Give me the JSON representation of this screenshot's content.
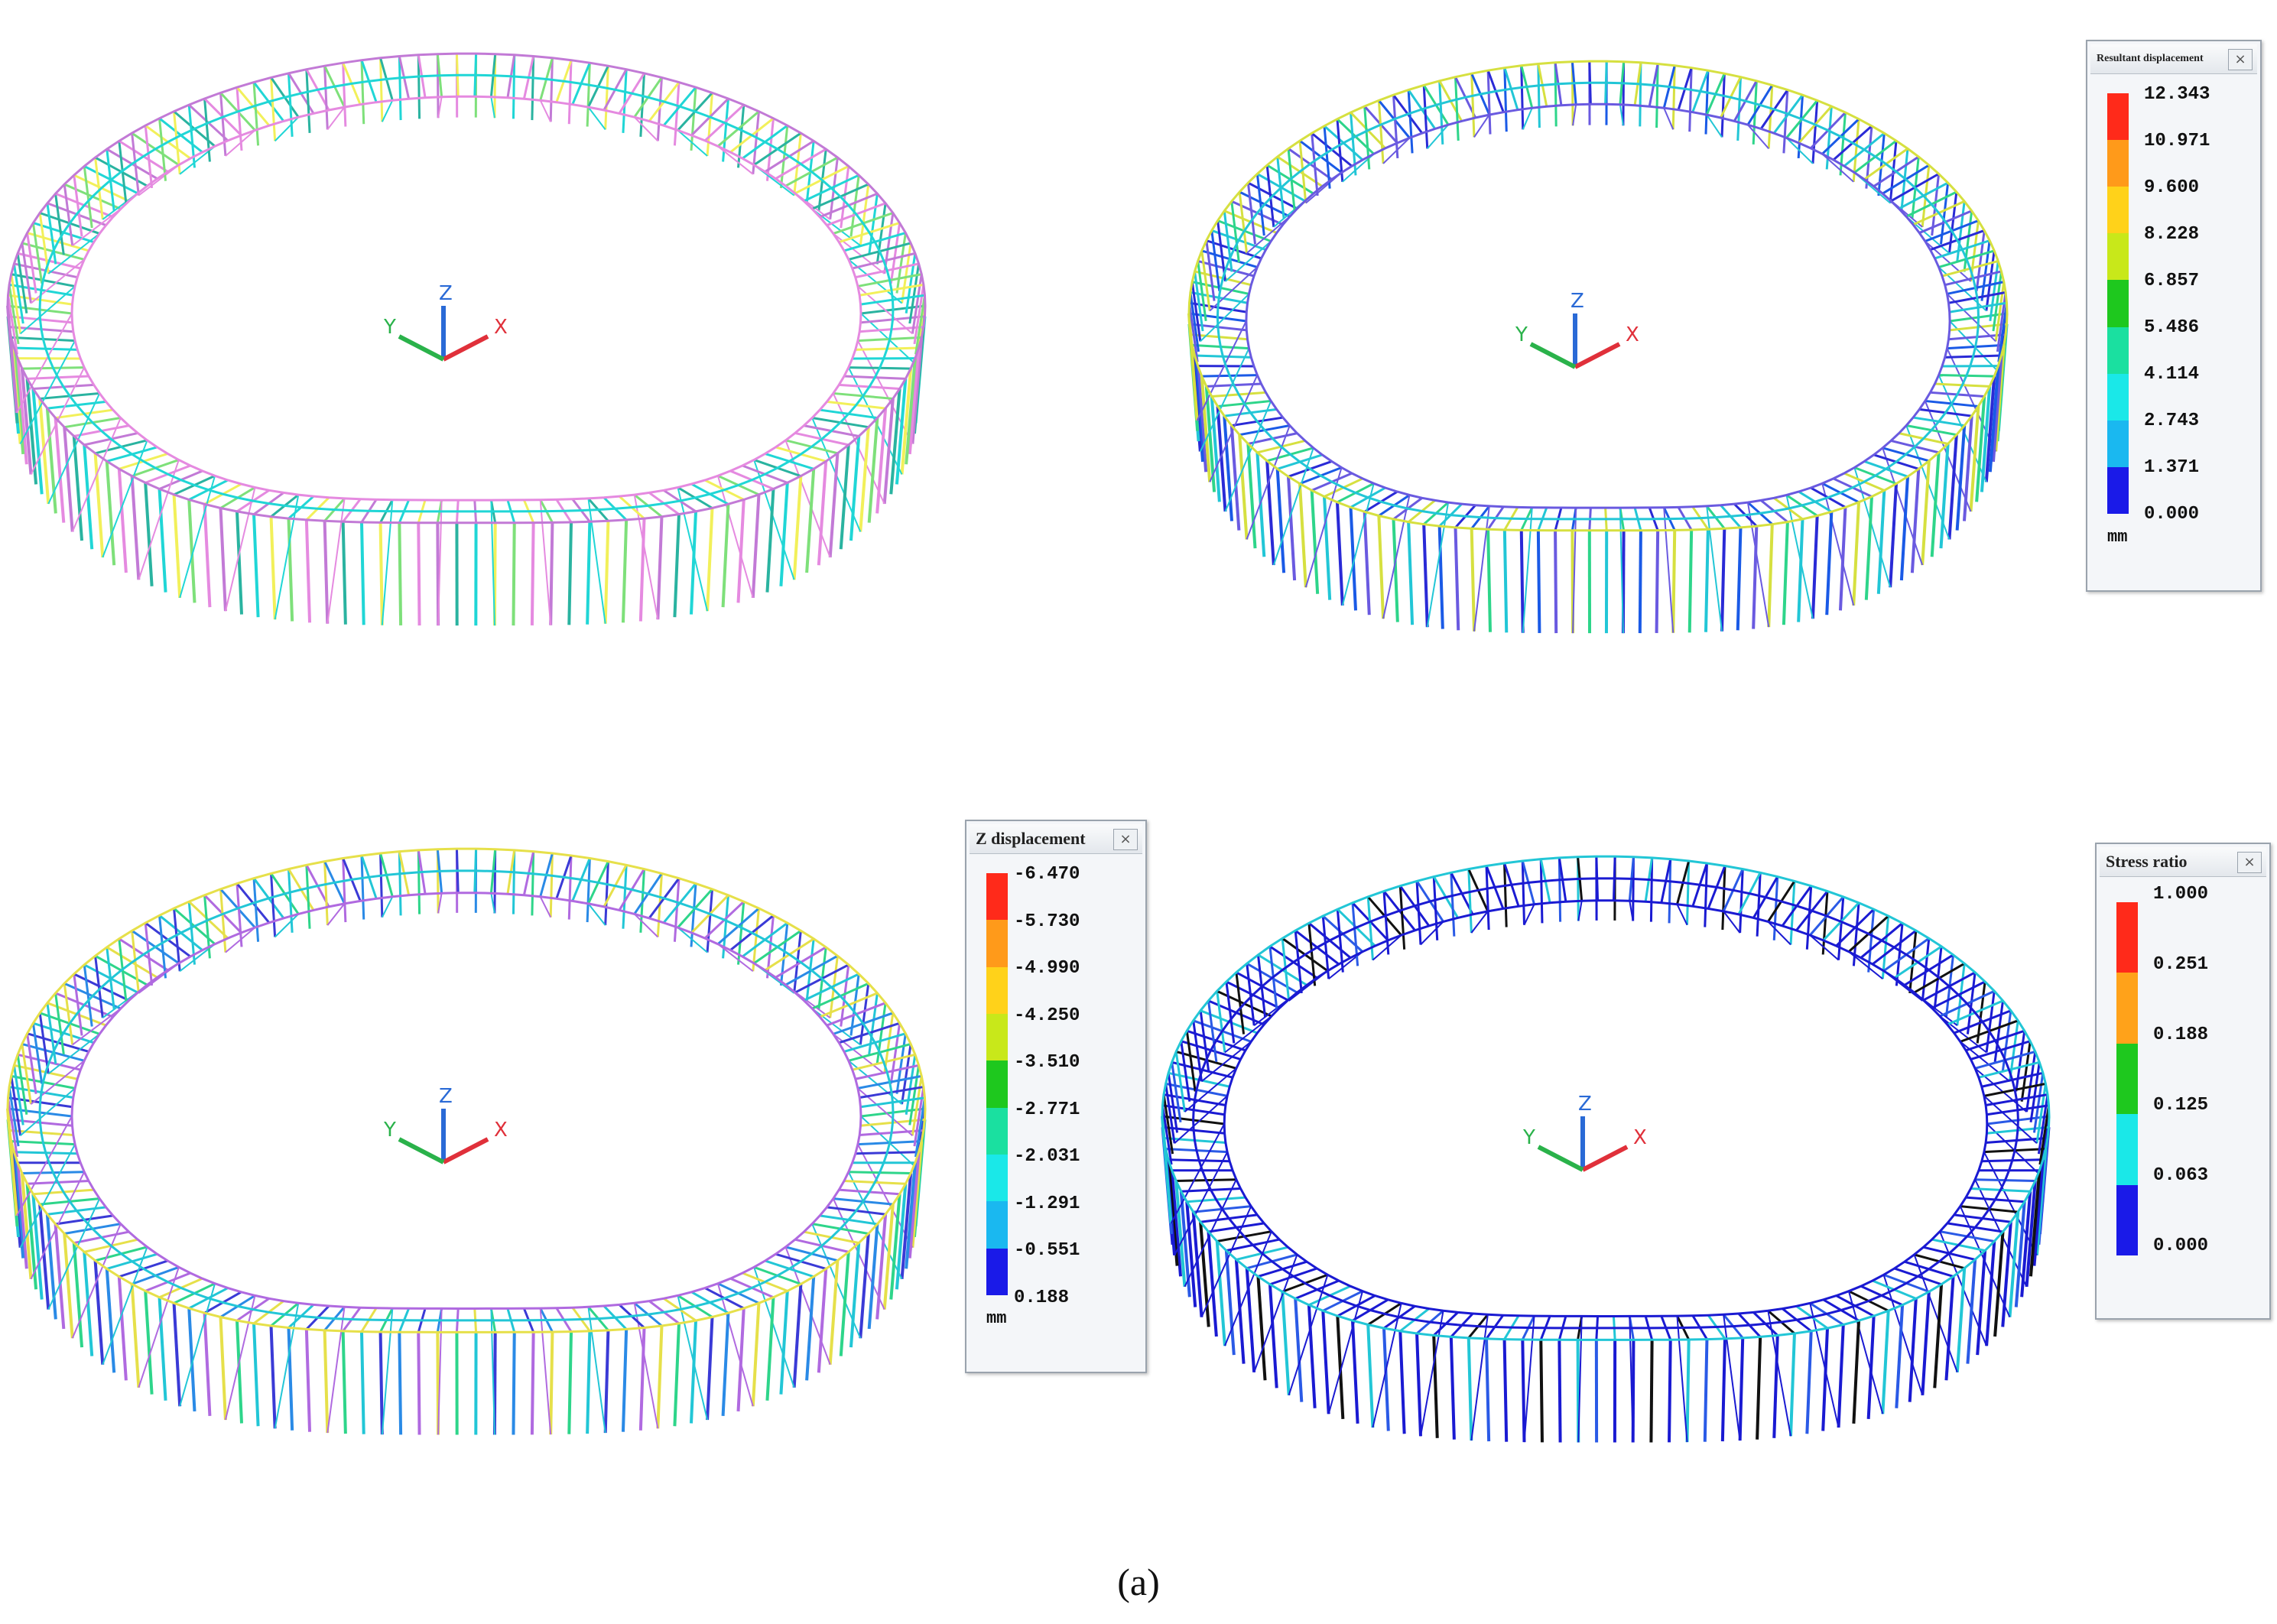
{
  "panels": [
    {
      "name": "panel-model",
      "palette": [
        "#f2f05a",
        "#20d6d6",
        "#2ab3a0",
        "#c27ad6",
        "#e58ae0",
        "#7ee07a"
      ]
    },
    {
      "name": "panel-resultant",
      "palette": [
        "#2a2ad6",
        "#22c6d6",
        "#2ed58a",
        "#d6e040",
        "#6a5ae0",
        "#1a5ae6"
      ]
    },
    {
      "name": "panel-z",
      "palette": [
        "#3a3ad6",
        "#22c6d6",
        "#2ed58a",
        "#e6e04a",
        "#b06ae0",
        "#2a8ae6"
      ]
    },
    {
      "name": "panel-stress",
      "palette": [
        "#1a1ad2",
        "#1a1ad2",
        "#2a5ae6",
        "#22c6d6",
        "#1a1ad2",
        "#111111"
      ]
    }
  ],
  "axis_triad": {
    "x": "X",
    "y": "Y",
    "z": "Z",
    "colors": {
      "x": "#e0303a",
      "y": "#2ab24a",
      "z": "#2a6ad6"
    }
  },
  "legends": {
    "resultant": {
      "title": "Resultant displacement",
      "close_icon": "×",
      "unit": "mm",
      "labels": [
        "12.343",
        "10.971",
        "9.600",
        "8.228",
        "6.857",
        "5.486",
        "4.114",
        "2.743",
        "1.371",
        "0.000"
      ],
      "colors": [
        "#ff2a1a",
        "#ff9a1a",
        "#ffd21a",
        "#c8e81a",
        "#1ec81e",
        "#1ae0a0",
        "#1ae8e8",
        "#1ab8f0",
        "#1a1ae8"
      ]
    },
    "z": {
      "title": "Z displacement",
      "close_icon": "×",
      "unit": "mm",
      "labels": [
        "-6.470",
        "-5.730",
        "-4.990",
        "-4.250",
        "-3.510",
        "-2.771",
        "-2.031",
        "-1.291",
        "-0.551",
        "0.188"
      ],
      "colors": [
        "#ff2a1a",
        "#ff9a1a",
        "#ffd21a",
        "#c8e81a",
        "#1ec81e",
        "#1ae0a0",
        "#1ae8e8",
        "#1ab8f0",
        "#1a1ae8"
      ]
    },
    "stress": {
      "title": "Stress ratio",
      "close_icon": "×",
      "labels": [
        "1.000",
        "0.251",
        "0.188",
        "0.125",
        "0.063",
        "0.000"
      ],
      "colors": [
        "#ff2a1a",
        "#ffa21a",
        "#1ec81e",
        "#1ae8e8",
        "#1a1ae8"
      ]
    }
  },
  "caption": "(a)"
}
